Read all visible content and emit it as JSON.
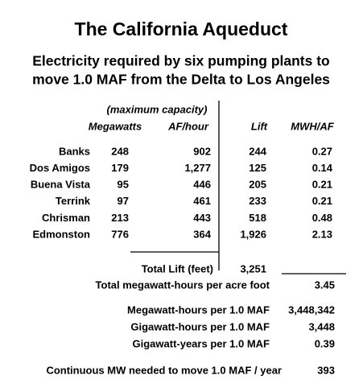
{
  "title": "The California Aqueduct",
  "subtitle": [
    "Electricity required by six pumping plants to",
    "move 1.0 MAF from the Delta to Los Angeles"
  ],
  "table": {
    "group_header": "(maximum capacity)",
    "columns": [
      "Megawatts",
      "AF/hour",
      "Lift",
      "MWH/AF"
    ],
    "rows": [
      [
        "Banks",
        "248",
        "902",
        "244",
        "0.27"
      ],
      [
        "Dos Amigos",
        "179",
        "1,277",
        "125",
        "0.14"
      ],
      [
        "Buena Vista",
        "95",
        "446",
        "205",
        "0.21"
      ],
      [
        "Terrink",
        "97",
        "461",
        "233",
        "0.21"
      ],
      [
        "Chrisman",
        "213",
        "443",
        "518",
        "0.48"
      ],
      [
        "Edmonston",
        "776",
        "364",
        "1,926",
        "2.13"
      ]
    ]
  },
  "total_lift": {
    "label": "Total Lift (feet)",
    "value": "3,251"
  },
  "summary": [
    {
      "label": "Total megawatt-hours per acre foot",
      "value": "3.45"
    },
    {
      "label": "Megawatt-hours per 1.0 MAF",
      "value": "3,448,342"
    },
    {
      "label": "Gigawatt-hours per 1.0 MAF",
      "value": "3,448"
    },
    {
      "label": "Gigawatt-years per 1.0 MAF",
      "value": "0.39"
    },
    {
      "label": "Continuous MW needed to move 1.0 MAF / year",
      "value": "393"
    }
  ]
}
